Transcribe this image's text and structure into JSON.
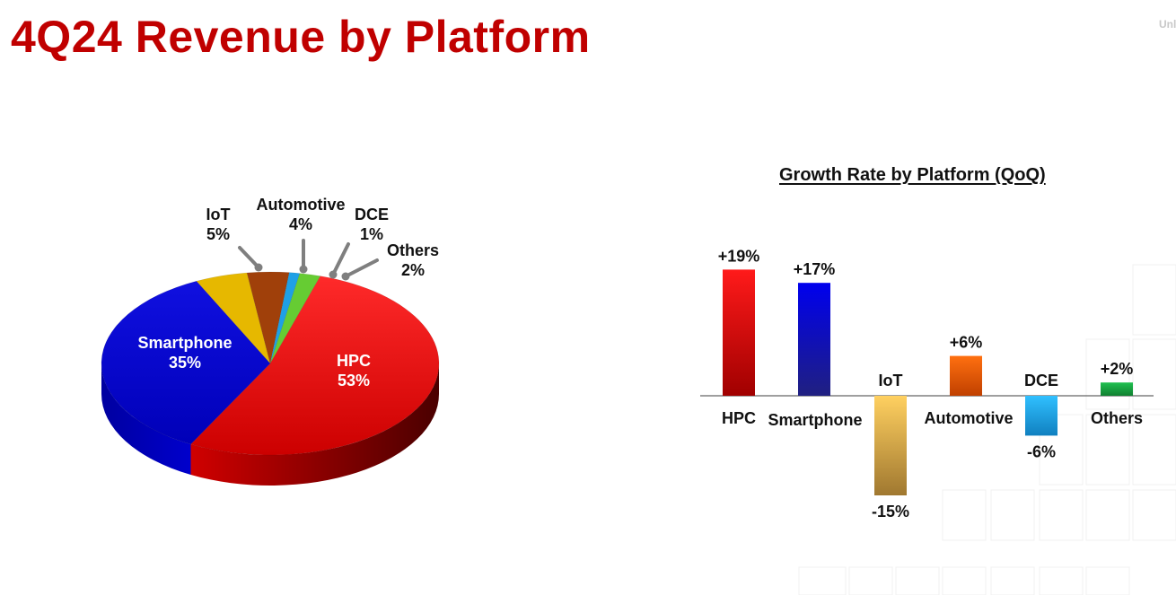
{
  "page": {
    "title": "4Q24 Revenue by Platform",
    "corner_tag": "Unl"
  },
  "colors": {
    "title": "#c00000",
    "HPC": "#ff0000",
    "Smartphone": "#0000dd",
    "IoT": "#e6b800",
    "Automotive": "#a0400a",
    "DCE": "#1ea0e6",
    "Others": "#66cc33"
  },
  "chart_data": [
    {
      "type": "pie",
      "title": "",
      "slices": [
        {
          "label": "HPC",
          "value": 53,
          "value_label": "53%"
        },
        {
          "label": "Smartphone",
          "value": 35,
          "value_label": "35%"
        },
        {
          "label": "IoT",
          "value": 5,
          "value_label": "5%"
        },
        {
          "label": "Automotive",
          "value": 4,
          "value_label": "4%"
        },
        {
          "label": "DCE",
          "value": 1,
          "value_label": "1%"
        },
        {
          "label": "Others",
          "value": 2,
          "value_label": "2%"
        }
      ]
    },
    {
      "type": "bar",
      "title": "Growth Rate by Platform (QoQ)",
      "categories": [
        "HPC",
        "Smartphone",
        "IoT",
        "Automotive",
        "DCE",
        "Others"
      ],
      "values": [
        19,
        17,
        -15,
        6,
        -6,
        2
      ],
      "value_labels": [
        "+19%",
        "+17%",
        "-15%",
        "+6%",
        "-6%",
        "+2%"
      ],
      "xlabel": "",
      "ylabel": "",
      "grid": false
    }
  ]
}
